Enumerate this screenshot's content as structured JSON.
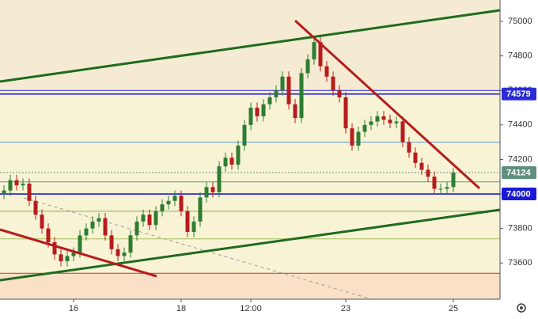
{
  "chart_data": {
    "type": "candlestick",
    "categories": [
      null,
      null,
      null,
      null,
      null,
      null,
      null,
      null,
      null,
      null,
      null,
      "16",
      null,
      null,
      null,
      null,
      null,
      null,
      null,
      null,
      null,
      null,
      null,
      null,
      null,
      null,
      null,
      null,
      "18",
      null,
      null,
      null,
      null,
      null,
      null,
      null,
      null,
      null,
      null,
      "12:00",
      null,
      null,
      null,
      null,
      null,
      null,
      null,
      null,
      null,
      null,
      null,
      null,
      null,
      null,
      "23",
      null,
      null,
      null,
      null,
      null,
      null,
      null,
      null,
      null,
      null,
      null,
      null,
      null,
      null,
      null,
      null,
      "25"
    ],
    "open": [
      74000,
      74020,
      74080,
      74050,
      74060,
      73960,
      73880,
      73800,
      73720,
      73650,
      73610,
      73640,
      73660,
      73760,
      73800,
      73840,
      73860,
      73760,
      73680,
      73640,
      73660,
      73760,
      73840,
      73880,
      73820,
      73900,
      73940,
      73960,
      73990,
      73900,
      73780,
      73840,
      73980,
      74040,
      74010,
      74160,
      74210,
      74170,
      74280,
      74400,
      74500,
      74450,
      74520,
      74560,
      74600,
      74680,
      74520,
      74440,
      74700,
      74780,
      74880,
      74740,
      74680,
      74600,
      74560,
      74380,
      74280,
      74360,
      74400,
      74420,
      74450,
      74430,
      74410,
      74420,
      74300,
      74240,
      74180,
      74140,
      74100,
      74030,
      74030,
      74040
    ],
    "high": [
      74050,
      74110,
      74110,
      74090,
      74090,
      73990,
      73910,
      73830,
      73750,
      73680,
      73670,
      73690,
      73790,
      73830,
      73870,
      73890,
      73890,
      73790,
      73710,
      73690,
      73790,
      73870,
      73910,
      73910,
      73930,
      73970,
      73990,
      74020,
      74020,
      73930,
      73870,
      74010,
      74070,
      74070,
      74190,
      74240,
      74240,
      74310,
      74430,
      74530,
      74530,
      74550,
      74590,
      74630,
      74710,
      74710,
      74550,
      74730,
      74810,
      74910,
      74910,
      74770,
      74710,
      74630,
      74590,
      74410,
      74390,
      74430,
      74450,
      74480,
      74480,
      74460,
      74450,
      74450,
      74330,
      74270,
      74210,
      74170,
      74130,
      74060,
      74070,
      74150
    ],
    "low": [
      73970,
      73990,
      74020,
      74020,
      73930,
      73850,
      73770,
      73690,
      73620,
      73580,
      73580,
      73610,
      73630,
      73730,
      73770,
      73810,
      73730,
      73650,
      73610,
      73610,
      73630,
      73730,
      73810,
      73790,
      73790,
      73870,
      73910,
      73930,
      73870,
      73750,
      73750,
      73810,
      73950,
      73980,
      73980,
      74130,
      74140,
      74140,
      74250,
      74370,
      74420,
      74420,
      74490,
      74530,
      74570,
      74490,
      74410,
      74410,
      74670,
      74750,
      74710,
      74650,
      74570,
      74530,
      74350,
      74250,
      74250,
      74330,
      74370,
      74390,
      74400,
      74380,
      74380,
      74270,
      74210,
      74150,
      74110,
      74070,
      74000,
      74000,
      74000,
      74010
    ],
    "close": [
      74020,
      74080,
      74050,
      74060,
      73960,
      73880,
      73800,
      73720,
      73650,
      73610,
      73640,
      73660,
      73760,
      73800,
      73840,
      73860,
      73760,
      73680,
      73640,
      73660,
      73760,
      73840,
      73880,
      73820,
      73900,
      73940,
      73960,
      73990,
      73900,
      73780,
      73840,
      73980,
      74040,
      74010,
      74160,
      74210,
      74170,
      74280,
      74400,
      74500,
      74450,
      74520,
      74560,
      74600,
      74680,
      74520,
      74440,
      74700,
      74780,
      74880,
      74740,
      74680,
      74600,
      74560,
      74380,
      74280,
      74360,
      74400,
      74420,
      74450,
      74430,
      74410,
      74420,
      74300,
      74240,
      74180,
      74140,
      74100,
      74030,
      74030,
      74040,
      74124
    ],
    "up_color": "#2e7d32",
    "down_color": "#b71c1c",
    "ylim": [
      73390,
      75124
    ],
    "yticks": [
      73600,
      73800,
      74000,
      74200,
      74400,
      74600,
      74800,
      75000
    ],
    "levels": [
      {
        "value": 74600,
        "color": "#2b2bd8"
      },
      {
        "value": 74579,
        "color": "#2b2bd8",
        "badge": true
      },
      {
        "value": 74300,
        "color": "#5b9bd5"
      },
      {
        "value": 74124,
        "color": "#5f8f7e",
        "badge": true,
        "dashed": true
      },
      {
        "value": 74070,
        "color": "#4aa08a"
      },
      {
        "value": 74000,
        "color": "#1a1ad6",
        "badge": true
      },
      {
        "value": 73900,
        "color": "#8ab04a"
      },
      {
        "value": 73740,
        "color": "#a6c060"
      },
      {
        "value": 73540,
        "color": "#c0392b"
      }
    ]
  }
}
